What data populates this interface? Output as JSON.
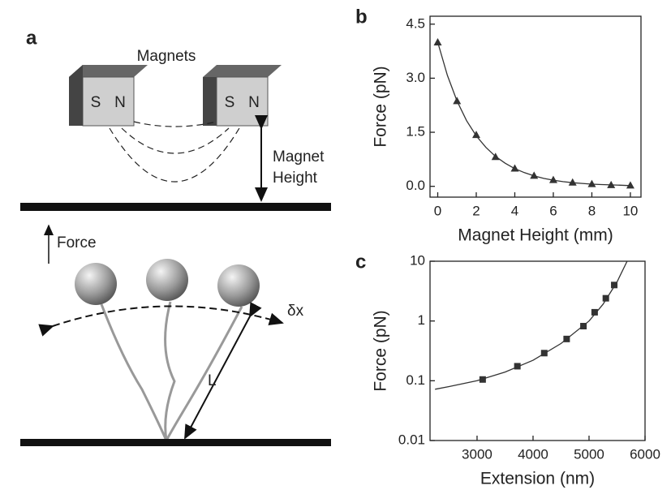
{
  "figure_a": {
    "panel_label": "a",
    "magnets_label": "Magnets",
    "magnet_poles": [
      [
        "S",
        "N"
      ],
      [
        "S",
        "N"
      ]
    ],
    "magnet_height_label": [
      "Magnet",
      "Height"
    ],
    "force_label": "Force",
    "dx_label": "δx",
    "length_label": "L"
  },
  "chart_data": [
    {
      "type": "scatter",
      "panel_label": "b",
      "xlabel": "Magnet Height (mm)",
      "ylabel": "Force (pN)",
      "xlim": [
        -0.4,
        10.55
      ],
      "ylim": [
        -0.3,
        4.72
      ],
      "xticks": [
        0,
        2,
        4,
        6,
        8,
        10
      ],
      "yticks": [
        {
          "value": 0,
          "label": "0.0"
        },
        1.5,
        {
          "value": 3,
          "label": "3.0"
        },
        4.5
      ],
      "log_y": false,
      "color": "#333333",
      "series": [
        {
          "marker": "triangle",
          "x": [
            0,
            1,
            2,
            3,
            4,
            5,
            6,
            7,
            8,
            9,
            10
          ],
          "values": [
            4.0,
            2.37,
            1.43,
            0.82,
            0.5,
            0.3,
            0.18,
            0.11,
            0.07,
            0.04,
            0.03
          ]
        },
        {
          "marker": "line",
          "x": [
            0,
            0.5,
            1,
            1.5,
            2,
            2.5,
            3,
            3.5,
            4,
            4.5,
            5,
            5.5,
            6,
            6.5,
            7,
            7.5,
            8,
            8.5,
            9,
            9.5,
            10
          ],
          "values": [
            4.0,
            3.08,
            2.37,
            1.82,
            1.4,
            1.08,
            0.83,
            0.64,
            0.49,
            0.38,
            0.29,
            0.22,
            0.17,
            0.13,
            0.1,
            0.08,
            0.06,
            0.05,
            0.04,
            0.03,
            0.02
          ]
        }
      ]
    },
    {
      "type": "scatter",
      "panel_label": "c",
      "xlabel": "Extension (nm)",
      "ylabel": "Force (pN)",
      "xlim": [
        2160,
        6000
      ],
      "ylim": [
        0.01,
        10
      ],
      "xticks": [
        3000,
        4000,
        5000,
        6000
      ],
      "yticks": [
        0.01,
        0.1,
        1,
        10
      ],
      "log_y": true,
      "color": "#333333",
      "series": [
        {
          "marker": "square",
          "x": [
            3100,
            3720,
            4200,
            4600,
            4900,
            5100,
            5300,
            5450
          ],
          "values": [
            0.105,
            0.175,
            0.29,
            0.5,
            0.82,
            1.4,
            2.4,
            4.0
          ]
        },
        {
          "marker": "line",
          "x": [
            2250,
            2500,
            3000,
            3500,
            4000,
            4500,
            5000,
            5250,
            5500,
            5680
          ],
          "values": [
            0.072,
            0.08,
            0.1,
            0.14,
            0.22,
            0.42,
            1.0,
            1.9,
            4.5,
            10
          ]
        }
      ]
    }
  ]
}
